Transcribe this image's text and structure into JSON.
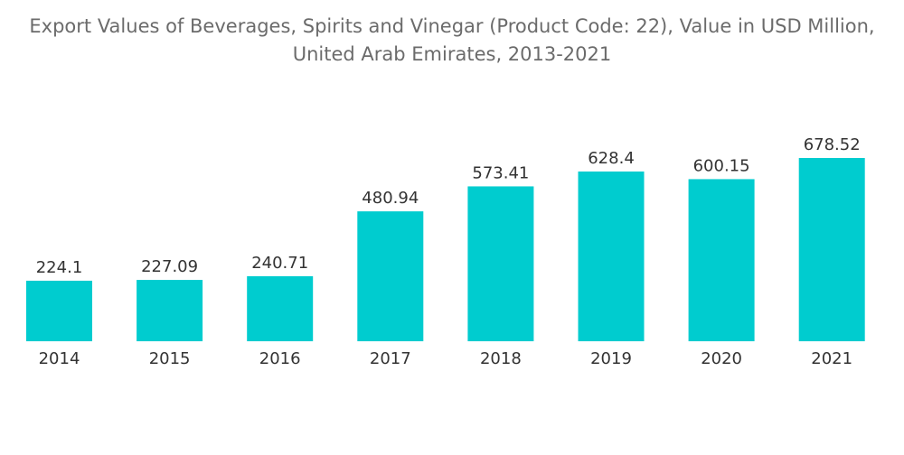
{
  "chart_data": {
    "type": "bar",
    "title_lines": [
      "Export Values of Beverages, Spirits and Vinegar (Product Code: 22), Value in USD Million,",
      "United Arab Emirates, 2013-2021"
    ],
    "categories": [
      "2014",
      "2015",
      "2016",
      "2017",
      "2018",
      "2019",
      "2020",
      "2021"
    ],
    "values": [
      224.1,
      227.09,
      240.71,
      480.94,
      573.41,
      628.4,
      600.15,
      678.52
    ],
    "value_labels": [
      "224.1",
      "227.09",
      "240.71",
      "480.94",
      "573.41",
      "628.4",
      "600.15",
      "678.52"
    ],
    "xlabel": "",
    "ylabel": "",
    "ylim": [
      0,
      678.52
    ],
    "grid": false,
    "legend": "none",
    "bar_color": "#00cccf"
  }
}
